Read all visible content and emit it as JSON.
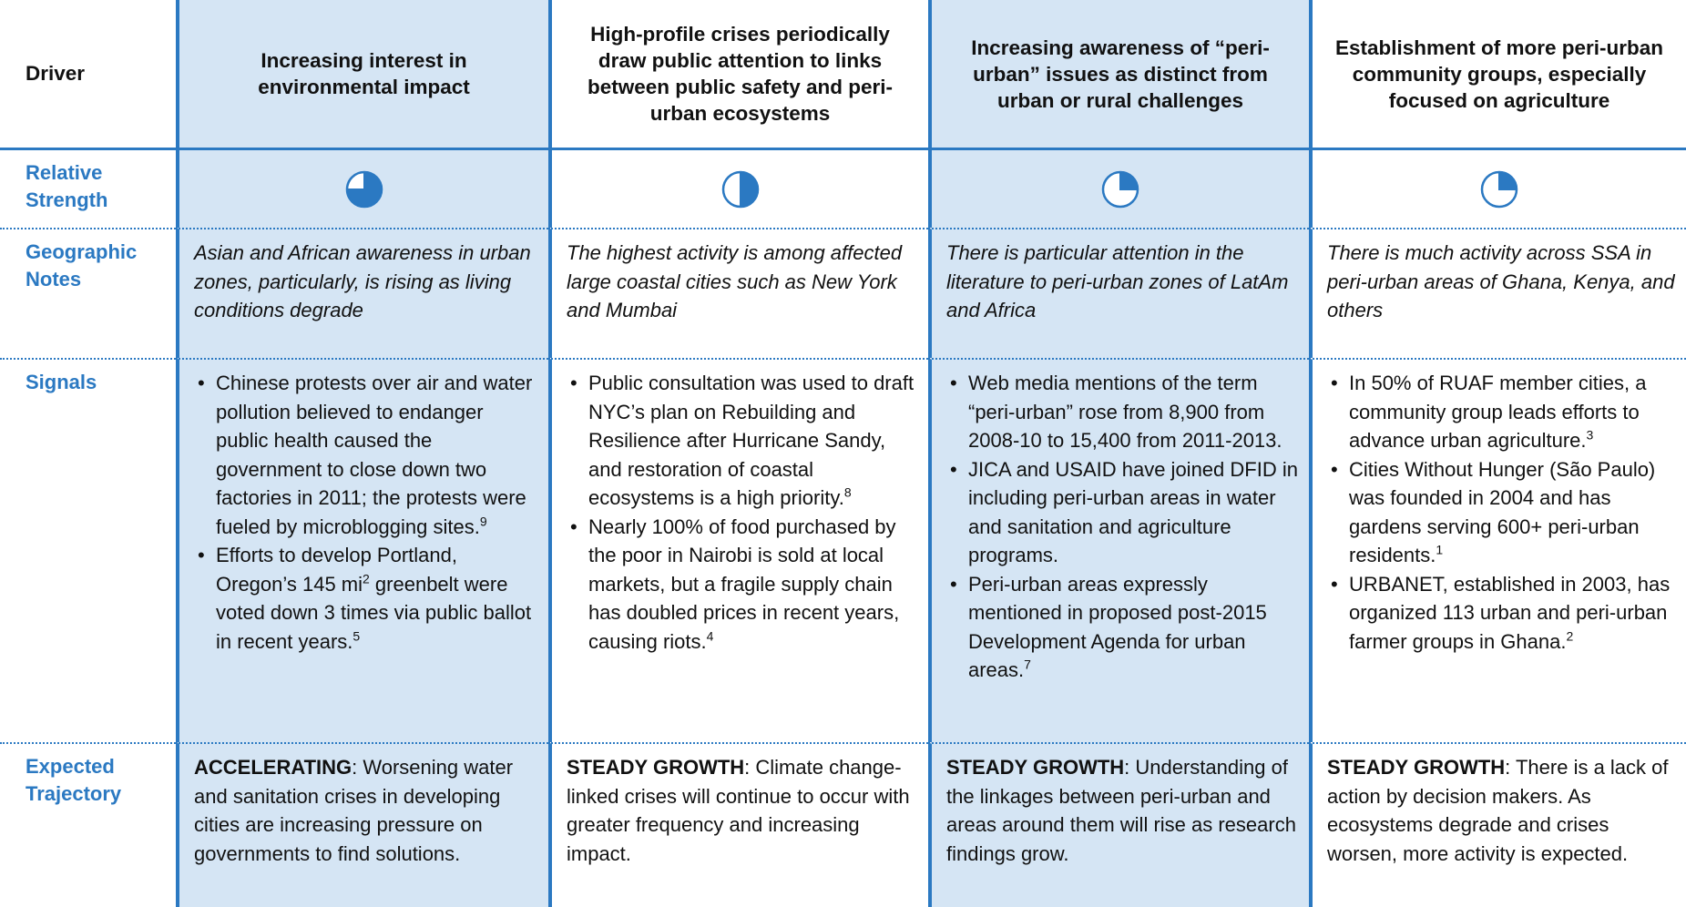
{
  "header": {
    "label": "Driver",
    "columns": [
      "Increasing interest in environmental impact",
      "High-profile crises periodically draw public attention to links between public safety and peri-urban ecosystems",
      "Increasing awareness of “peri-urban” issues as distinct from urban or rural challenges",
      "Establishment of more peri-urban community groups, especially focused on agriculture"
    ]
  },
  "relative_strength": {
    "label": "Relative Strength",
    "quarters": [
      3,
      2,
      1,
      1
    ]
  },
  "geographic_notes": {
    "label": "Geographic Notes",
    "cells": [
      "Asian and African awareness in urban zones, particularly, is rising as living conditions degrade",
      "The highest activity is among affected large coastal cities such as New York and Mumbai",
      "There is particular attention in the literature to peri-urban zones of LatAm and Africa",
      "There is much activity across SSA in peri-urban areas of Ghana, Kenya, and others"
    ]
  },
  "signals": {
    "label": "Signals",
    "cells": [
      [
        [
          "Chinese protests over air and water pollution believed to endanger public health caused the government to close down two factories in 2011; the protests were fueled by microblogging sites.",
          {
            "sup": "9"
          }
        ],
        [
          "Efforts to develop Portland, Oregon’s 145 mi",
          {
            "sup": "2"
          },
          " greenbelt were voted down 3 times via public ballot in recent years.",
          {
            "sup": "5"
          }
        ]
      ],
      [
        [
          "Public consultation was used to draft NYC’s plan on Rebuilding and Resilience after Hurricane Sandy, and restoration of coastal ecosystems is a high priority.",
          {
            "sup": "8"
          }
        ],
        [
          "Nearly 100% of food purchased by the poor in Nairobi is sold at local markets, but a fragile supply chain has doubled prices in recent years, causing riots.",
          {
            "sup": "4"
          }
        ]
      ],
      [
        [
          "Web media mentions of the term “peri-urban” rose from 8,900 from 2008-10 to 15,400 from 2011-2013."
        ],
        [
          "JICA and USAID have joined DFID in including peri-urban areas in water and sanitation and agriculture programs."
        ],
        [
          "Peri-urban areas expressly mentioned in proposed post-2015 Development Agenda for urban areas.",
          {
            "sup": "7"
          }
        ]
      ],
      [
        [
          "In 50% of RUAF member cities, a community group leads efforts to advance urban agriculture.",
          {
            "sup": "3"
          }
        ],
        [
          "Cities Without Hunger (São Paulo) was founded in 2004 and has gardens serving 600+ peri-urban residents.",
          {
            "sup": "1"
          }
        ],
        [
          "URBANET, established in 2003, has organized 113 urban and peri-urban farmer groups in Ghana.",
          {
            "sup": "2"
          }
        ]
      ]
    ]
  },
  "expected_trajectory": {
    "label": "Expected Trajectory",
    "cells": [
      {
        "status": "ACCELERATING",
        "text": ": Worsening water and sanitation crises in developing cities are increasing pressure on governments to find solutions."
      },
      {
        "status": "STEADY GROWTH",
        "text": ": Climate change-linked crises will continue to occur with greater frequency and increasing impact."
      },
      {
        "status": "STEADY GROWTH",
        "text": ": Understanding of the linkages between peri-urban and areas around them will rise as research findings grow."
      },
      {
        "status": "STEADY GROWTH",
        "text": ": There is a lack of action by decision makers. As ecosystems degrade and crises worsen, more activity is expected."
      }
    ]
  }
}
